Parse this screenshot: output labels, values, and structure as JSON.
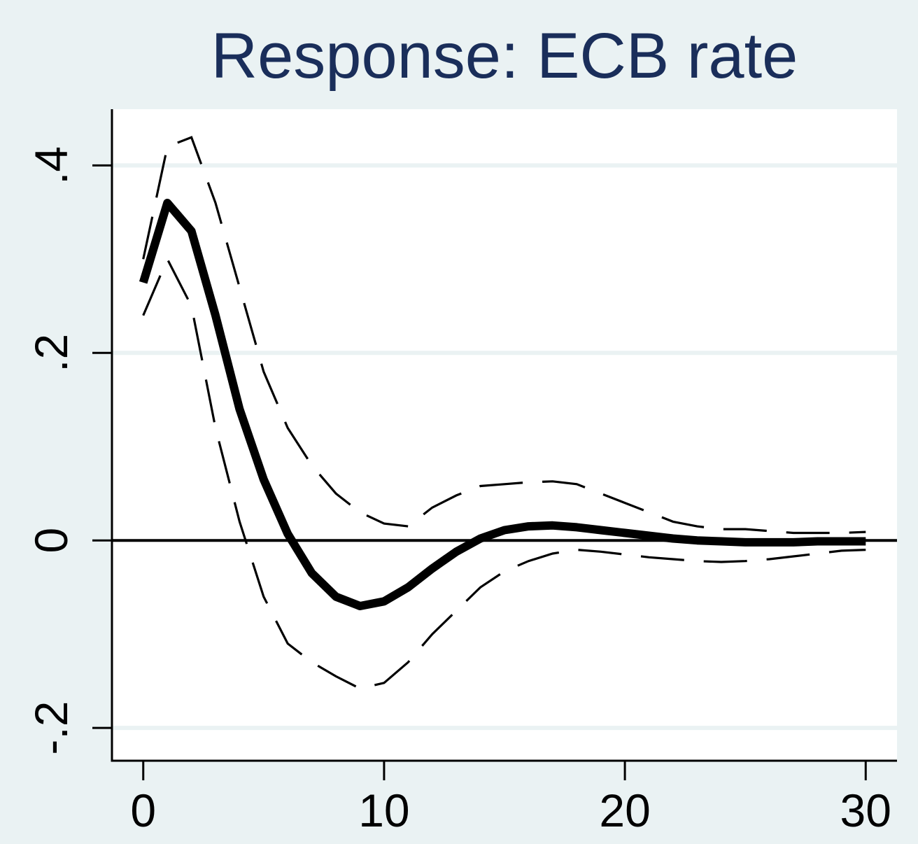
{
  "chart_data": {
    "type": "line",
    "title": "Response: ECB rate",
    "xlabel": "",
    "ylabel": "",
    "xlim": [
      -1.3,
      31.3
    ],
    "ylim": [
      -0.235,
      0.46
    ],
    "grid": true,
    "x_ticks": [
      {
        "value": 0,
        "label": "0"
      },
      {
        "value": 10,
        "label": "10"
      },
      {
        "value": 20,
        "label": "20"
      },
      {
        "value": 30,
        "label": "30"
      }
    ],
    "y_ticks": [
      {
        "value": -0.2,
        "label": "-.2"
      },
      {
        "value": 0,
        "label": "0"
      },
      {
        "value": 0.2,
        "label": ".2"
      },
      {
        "value": 0.4,
        "label": ".4"
      }
    ],
    "zero_line": 0,
    "x": [
      0,
      1,
      2,
      3,
      4,
      5,
      6,
      7,
      8,
      9,
      10,
      11,
      12,
      13,
      14,
      15,
      16,
      17,
      18,
      19,
      20,
      21,
      22,
      23,
      24,
      25,
      26,
      27,
      28,
      29,
      30
    ],
    "series": [
      {
        "style": "solid-thick",
        "values": [
          0.275,
          0.36,
          0.33,
          0.24,
          0.14,
          0.065,
          0.007,
          -0.035,
          -0.06,
          -0.07,
          -0.065,
          -0.05,
          -0.03,
          -0.012,
          0.002,
          0.011,
          0.015,
          0.016,
          0.014,
          0.011,
          0.008,
          0.005,
          0.002,
          0.0,
          -0.001,
          -0.002,
          -0.002,
          -0.002,
          -0.001,
          -0.001,
          -0.001
        ]
      },
      {
        "style": "dashed-upper",
        "values": [
          0.3,
          0.42,
          0.43,
          0.36,
          0.27,
          0.18,
          0.12,
          0.08,
          0.05,
          0.03,
          0.018,
          0.015,
          0.035,
          0.048,
          0.058,
          0.06,
          0.062,
          0.063,
          0.06,
          0.05,
          0.04,
          0.03,
          0.02,
          0.015,
          0.012,
          0.012,
          0.01,
          0.008,
          0.008,
          0.008,
          0.009
        ]
      },
      {
        "style": "dashed-lower",
        "values": [
          0.24,
          0.3,
          0.25,
          0.12,
          0.02,
          -0.06,
          -0.11,
          -0.13,
          -0.145,
          -0.158,
          -0.152,
          -0.13,
          -0.1,
          -0.075,
          -0.05,
          -0.033,
          -0.022,
          -0.014,
          -0.01,
          -0.012,
          -0.015,
          -0.018,
          -0.02,
          -0.022,
          -0.023,
          -0.022,
          -0.02,
          -0.017,
          -0.014,
          -0.011,
          -0.01
        ]
      }
    ],
    "colors": {
      "background": "#eaf2f3",
      "plot_background": "#ffffff",
      "gridline": "#eaf2f3",
      "title": "#1a2e5a",
      "line": "#000000"
    }
  }
}
